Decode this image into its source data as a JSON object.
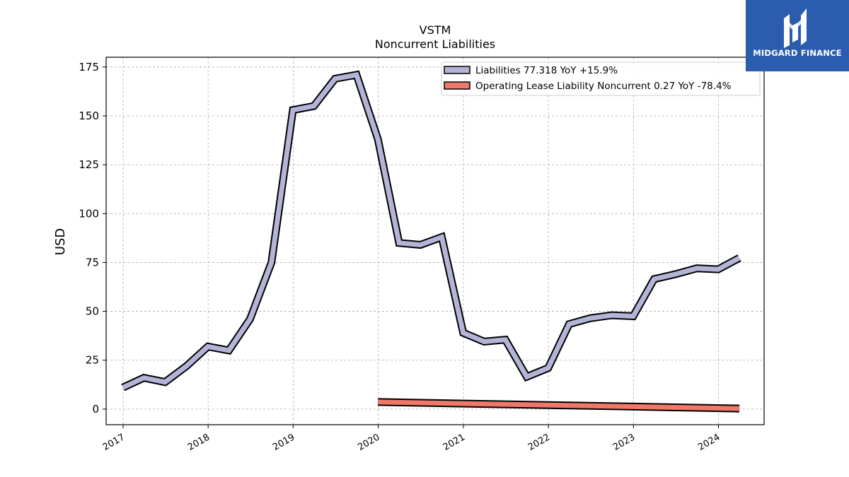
{
  "brand": {
    "name": "MIDGARD FINANCE"
  },
  "colors": {
    "liabilities": "#b4b4d8",
    "lease": "#f07868",
    "outline": "#000000",
    "grid": "#aaaaaa"
  },
  "chart_data": {
    "type": "line",
    "title": "VSTM",
    "subtitle": "Noncurrent  Liabilities",
    "ylabel": "USD",
    "xlabel": "",
    "ylim": [
      -8,
      180
    ],
    "yticks": [
      "0",
      "25",
      "50",
      "75",
      "100",
      "125",
      "150",
      "175"
    ],
    "xlim": [
      "2016-10-20",
      "2024-07-15"
    ],
    "xticks": [
      "2017",
      "2018",
      "2019",
      "2020",
      "2021",
      "2022",
      "2023",
      "2024"
    ],
    "grid": true,
    "legend_position": "top-right",
    "series": [
      {
        "name": "Liabilities  77.318 YoY +15.9%",
        "color": "#b4b4d8",
        "points": [
          {
            "x": "2016-12-31",
            "y": 11
          },
          {
            "x": "2017-03-31",
            "y": 16
          },
          {
            "x": "2017-06-30",
            "y": 13.8
          },
          {
            "x": "2017-09-30",
            "y": 22
          },
          {
            "x": "2017-12-31",
            "y": 32
          },
          {
            "x": "2018-03-31",
            "y": 30
          },
          {
            "x": "2018-06-30",
            "y": 46
          },
          {
            "x": "2018-09-30",
            "y": 75
          },
          {
            "x": "2018-12-31",
            "y": 153
          },
          {
            "x": "2019-03-31",
            "y": 155
          },
          {
            "x": "2019-06-30",
            "y": 169
          },
          {
            "x": "2019-09-30",
            "y": 171
          },
          {
            "x": "2019-12-31",
            "y": 138
          },
          {
            "x": "2020-03-31",
            "y": 85
          },
          {
            "x": "2020-06-30",
            "y": 84
          },
          {
            "x": "2020-09-30",
            "y": 88
          },
          {
            "x": "2020-12-31",
            "y": 39
          },
          {
            "x": "2021-03-31",
            "y": 34.5
          },
          {
            "x": "2021-06-30",
            "y": 35.5
          },
          {
            "x": "2021-09-30",
            "y": 16.5
          },
          {
            "x": "2021-12-31",
            "y": 21
          },
          {
            "x": "2022-03-31",
            "y": 43.5
          },
          {
            "x": "2022-06-30",
            "y": 46.5
          },
          {
            "x": "2022-09-30",
            "y": 48
          },
          {
            "x": "2022-12-31",
            "y": 47.5
          },
          {
            "x": "2023-03-31",
            "y": 66.5
          },
          {
            "x": "2023-06-30",
            "y": 69
          },
          {
            "x": "2023-09-30",
            "y": 72
          },
          {
            "x": "2023-12-31",
            "y": 71.5
          },
          {
            "x": "2024-03-31",
            "y": 77.318
          }
        ]
      },
      {
        "name": "Operating Lease Liability Noncurrent  0.27 YoY -78.4%",
        "color": "#f07868",
        "points": [
          {
            "x": "2019-12-31",
            "y": 3.6
          },
          {
            "x": "2024-03-31",
            "y": 0.27
          }
        ]
      }
    ]
  }
}
